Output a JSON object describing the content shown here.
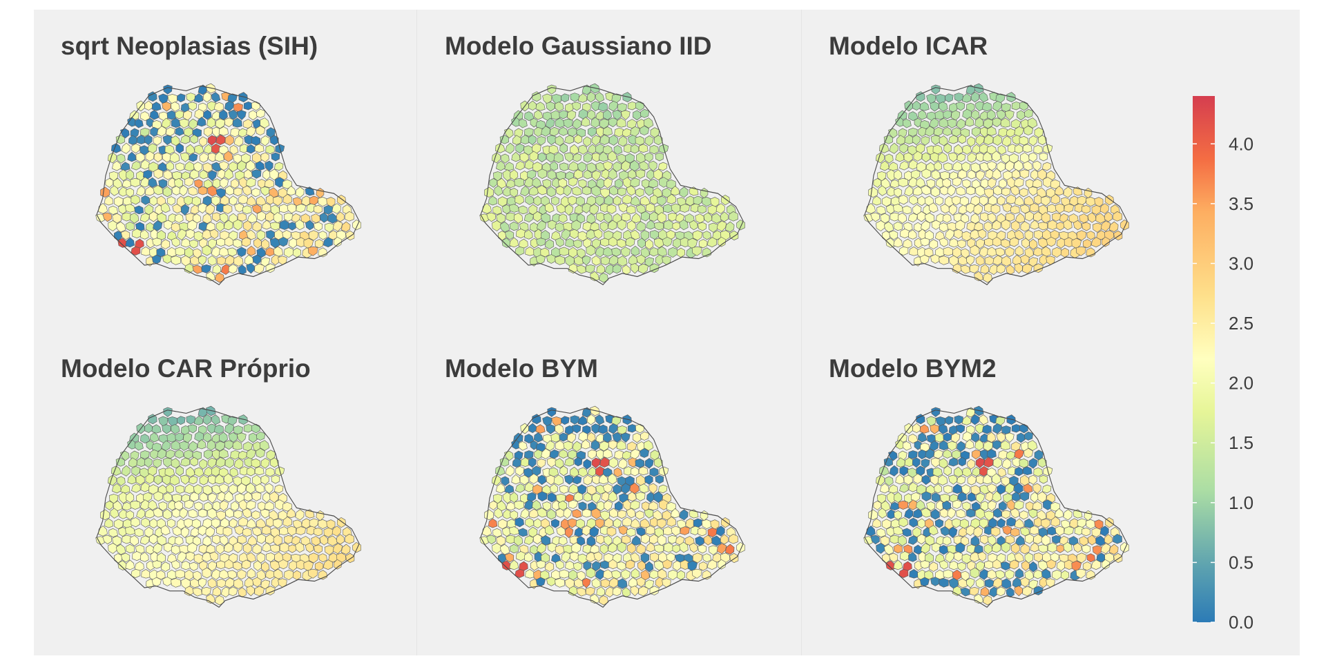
{
  "panels": [
    {
      "title": "sqrt Neoplasias (SIH)",
      "pattern": "observed",
      "seed": 11
    },
    {
      "title": "Modelo Gaussiano IID",
      "pattern": "iid",
      "seed": 23
    },
    {
      "title": "Modelo ICAR",
      "pattern": "icar",
      "seed": 37
    },
    {
      "title": "Modelo CAR Próprio",
      "pattern": "car",
      "seed": 41
    },
    {
      "title": "Modelo BYM",
      "pattern": "bym",
      "seed": 53
    },
    {
      "title": "Modelo BYM2",
      "pattern": "bym2",
      "seed": 67
    }
  ],
  "legend": {
    "min": 0.0,
    "max": 4.4,
    "ticks": [
      "0.0",
      "0.5",
      "1.0",
      "1.5",
      "2.0",
      "2.5",
      "3.0",
      "3.5",
      "4.0"
    ],
    "tick_values": [
      0,
      0.5,
      1,
      1.5,
      2,
      2.5,
      3,
      3.5,
      4
    ],
    "colors": [
      "#2c7bb6",
      "#5aa0b0",
      "#abdda4",
      "#e6f598",
      "#ffffbf",
      "#fee08b",
      "#fdae61",
      "#f46d43",
      "#d53e4f"
    ],
    "color_positions": [
      0,
      0.1,
      0.25,
      0.4,
      0.5,
      0.62,
      0.78,
      0.88,
      1
    ]
  },
  "colors": {
    "panel_background": "#f0f0f0",
    "region_border": "#5a5a5a",
    "title_text": "#3c3c3c"
  }
}
